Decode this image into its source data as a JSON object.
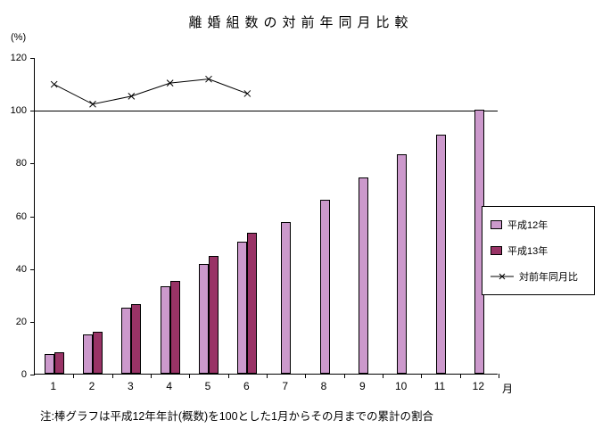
{
  "chart_data": {
    "type": "bar",
    "title": "離婚組数の対前年同月比較",
    "ylabel": "(%)",
    "xlabel": "月",
    "ylim": [
      0,
      120
    ],
    "yticks": [
      0,
      20,
      40,
      60,
      80,
      100,
      120
    ],
    "categories": [
      "1",
      "2",
      "3",
      "4",
      "5",
      "6",
      "7",
      "8",
      "9",
      "10",
      "11",
      "12"
    ],
    "series": [
      {
        "name": "平成12年",
        "type": "bar",
        "color": "#CC99CC",
        "values": [
          7.5,
          15,
          25,
          33,
          41.5,
          50,
          57.5,
          66,
          74.5,
          83,
          90.5,
          100
        ]
      },
      {
        "name": "平成13年",
        "type": "bar",
        "color": "#993366",
        "values": [
          8,
          16,
          26.5,
          35,
          44.5,
          53.5,
          null,
          null,
          null,
          null,
          null,
          null
        ]
      },
      {
        "name": "対前年同月比",
        "type": "line",
        "color": "#000000",
        "marker": "x",
        "values": [
          110,
          102.5,
          105.5,
          110.5,
          112,
          106.5,
          null,
          null,
          null,
          null,
          null,
          null
        ]
      }
    ],
    "reference_line": 100,
    "grid": false,
    "legend_position": "right",
    "note": "注:棒グラフは平成12年年計(概数)を100とした1月からその月までの累計の割合"
  }
}
